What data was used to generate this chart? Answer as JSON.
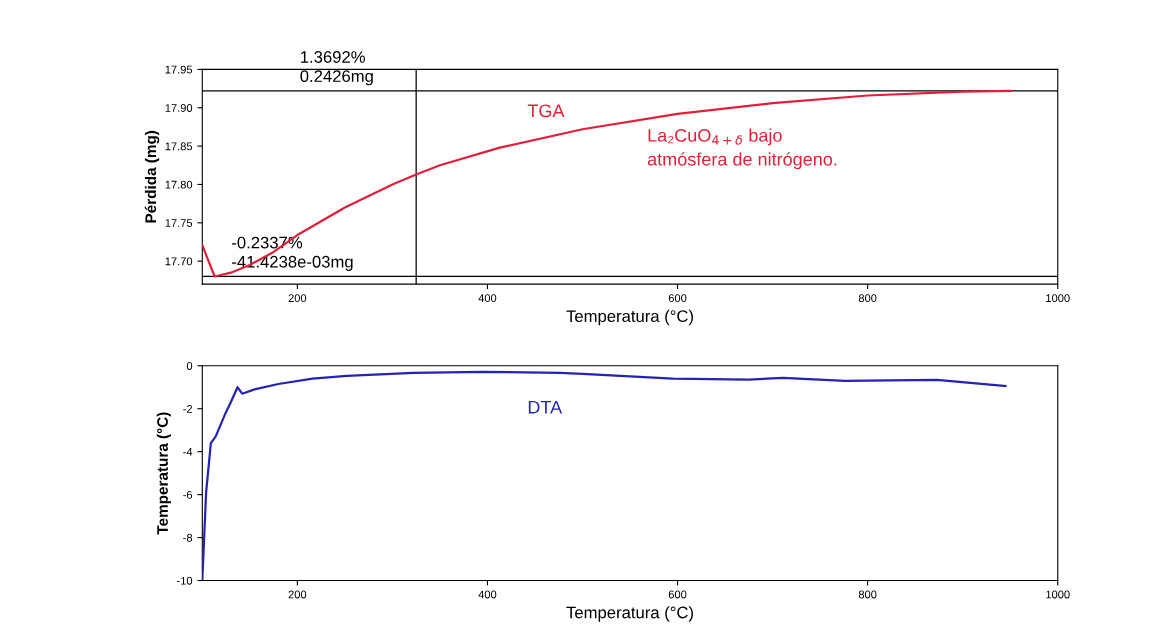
{
  "chart_data": [
    {
      "type": "line",
      "xlabel": "Temperatura (°C)",
      "ylabel": "Pérdida (mg)",
      "series": [
        {
          "name": "TGA",
          "color": "#e0203a",
          "x": [
            100,
            105,
            113,
            130,
            150,
            175,
            200,
            250,
            300,
            325,
            350,
            413,
            500,
            600,
            700,
            800,
            900,
            951
          ],
          "values": [
            17.721,
            17.705,
            17.68,
            17.685,
            17.695,
            17.712,
            17.734,
            17.77,
            17.8,
            17.813,
            17.825,
            17.848,
            17.872,
            17.892,
            17.906,
            17.916,
            17.921,
            17.922
          ]
        }
      ],
      "annotations": [
        {
          "text": "1.3692%\n0.2426mg",
          "x": 185,
          "y": 17.922
        },
        {
          "text": "-0.2337%\n-41.4238e-03mg",
          "x": 113,
          "y": 17.68
        },
        "La₂CuO$_{4+δ}$ bajo\natmósfera de nitrógeno."
      ],
      "ref_lines": [
        {
          "axis": "y",
          "value": 17.922,
          "color": "#000000"
        },
        {
          "axis": "x",
          "value": 325,
          "color": "#000000"
        },
        {
          "axis": "y",
          "value": 17.68,
          "color": "#000000"
        }
      ],
      "xlim": [
        100,
        1000
      ],
      "xticks": [
        200,
        400,
        600,
        800,
        1000
      ],
      "ylim": [
        17.67,
        17.95
      ],
      "yticks": [
        {
          "value": 17.7,
          "label": "17.70"
        },
        {
          "value": 17.75,
          "label": "17.75"
        },
        {
          "value": 17.8,
          "label": "17.80"
        },
        {
          "value": 17.85,
          "label": "17.85"
        },
        {
          "value": 17.9,
          "label": "17.90"
        },
        {
          "value": 17.95,
          "label": "17.95"
        }
      ],
      "grid": false,
      "legend": false
    },
    {
      "type": "line",
      "xlabel": "Temperatura (°C)",
      "ylabel": "Temperatura (°C)",
      "series": [
        {
          "name": "DTA",
          "color": "#2424b0",
          "x": [
            100,
            104,
            109,
            114,
            124,
            130,
            137,
            142,
            155,
            180,
            216,
            252,
            322,
            394,
            476,
            500,
            595,
            675,
            711,
            776,
            873,
            945
          ],
          "values": [
            -10,
            -5.9,
            -3.6,
            -3.3,
            -2.25,
            -1.7,
            -1.0,
            -1.3,
            -1.1,
            -0.85,
            -0.6,
            -0.47,
            -0.33,
            -0.28,
            -0.33,
            -0.38,
            -0.6,
            -0.65,
            -0.56,
            -0.7,
            -0.66,
            -0.94
          ]
        }
      ],
      "xlim": [
        100,
        1000
      ],
      "xticks": [
        200,
        400,
        600,
        800,
        1000
      ],
      "ylim": [
        -10,
        0
      ],
      "yticks": [
        -10,
        -8,
        -6,
        -4,
        -2,
        0
      ],
      "grid": false,
      "legend": false
    }
  ]
}
